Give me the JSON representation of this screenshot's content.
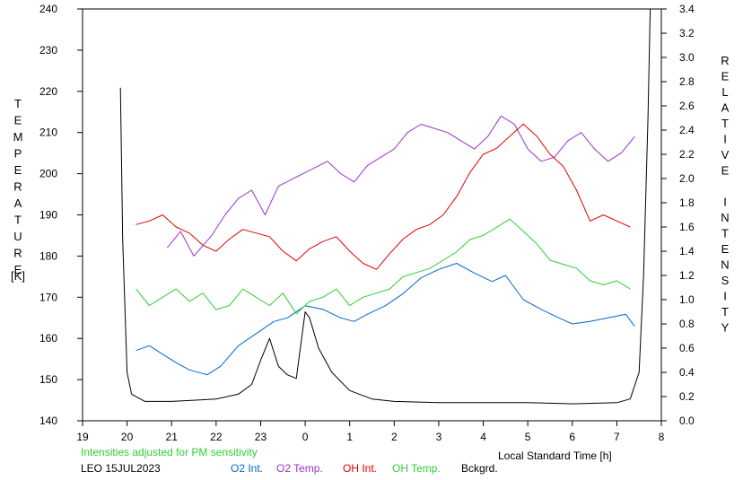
{
  "chart_data": {
    "type": "line",
    "x_label": "Local Standard Time [h]",
    "x_ticks": [
      19,
      20,
      21,
      22,
      23,
      0,
      1,
      2,
      3,
      4,
      5,
      6,
      7,
      8
    ],
    "x_range": [
      19,
      32
    ],
    "y_left_label": "TEMPERATURE [K]",
    "y_left_range": [
      140,
      240
    ],
    "y_left_ticks": [
      140,
      150,
      160,
      170,
      180,
      190,
      200,
      210,
      220,
      230,
      240
    ],
    "y_right_label": "RELATIVE INTENSITY",
    "y_right_range": [
      0.0,
      3.4
    ],
    "y_right_ticks": [
      "0.0",
      "0.2",
      "0.4",
      "0.6",
      "0.8",
      "1.0",
      "1.2",
      "1.4",
      "1.6",
      "1.8",
      "2.0",
      "2.2",
      "2.4",
      "2.6",
      "2.8",
      "3.0",
      "3.2",
      "3.4"
    ],
    "note": "Intensities adjusted for PM sensitivity",
    "station": "LEO 15JUL2023",
    "series": [
      {
        "name": "O2 Int.",
        "color": "#0066cc",
        "axis": "right",
        "x": [
          20.2,
          20.5,
          20.8,
          21.1,
          21.4,
          21.8,
          22.1,
          22.5,
          22.9,
          23.3,
          23.6,
          24.0,
          24.4,
          24.8,
          25.1,
          25.4,
          25.8,
          26.2,
          26.6,
          27.0,
          27.4,
          27.8,
          28.2,
          28.5,
          28.9,
          29.3,
          29.7,
          30.0,
          30.4,
          30.8,
          31.2,
          31.4
        ],
        "y": [
          0.58,
          0.62,
          0.55,
          0.48,
          0.42,
          0.38,
          0.45,
          0.62,
          0.72,
          0.82,
          0.85,
          0.95,
          0.92,
          0.85,
          0.82,
          0.88,
          0.95,
          1.05,
          1.18,
          1.25,
          1.3,
          1.22,
          1.15,
          1.2,
          1.0,
          0.92,
          0.85,
          0.8,
          0.82,
          0.85,
          0.88,
          0.78
        ]
      },
      {
        "name": "O2 Temp.",
        "color": "#9933cc",
        "axis": "left",
        "x": [
          20.9,
          21.2,
          21.5,
          21.9,
          22.2,
          22.5,
          22.8,
          23.1,
          23.4,
          24.5,
          24.8,
          25.1,
          25.4,
          25.7,
          26.0,
          26.3,
          26.6,
          26.9,
          27.2,
          27.5,
          27.8,
          28.1,
          28.4,
          28.7,
          29.0,
          29.3,
          29.6,
          29.9,
          30.2,
          30.5,
          30.8,
          31.1,
          31.4
        ],
        "y": [
          182,
          186,
          180,
          185,
          190,
          194,
          196,
          190,
          197,
          203,
          200,
          198,
          202,
          204,
          206,
          210,
          212,
          211,
          210,
          208,
          206,
          209,
          214,
          212,
          206,
          203,
          204,
          208,
          210,
          206,
          203,
          205,
          209
        ]
      },
      {
        "name": "OH Int.",
        "color": "#dd0000",
        "axis": "right",
        "x": [
          20.2,
          20.5,
          20.8,
          21.1,
          21.4,
          21.7,
          22.0,
          22.3,
          22.6,
          22.9,
          23.2,
          23.5,
          23.8,
          24.1,
          24.4,
          24.7,
          25.0,
          25.3,
          25.6,
          25.9,
          26.2,
          26.5,
          26.8,
          27.1,
          27.4,
          27.7,
          28.0,
          28.3,
          28.6,
          28.9,
          29.2,
          29.5,
          29.8,
          30.1,
          30.4,
          30.7,
          31.0,
          31.3
        ],
        "y": [
          1.62,
          1.65,
          1.7,
          1.6,
          1.55,
          1.45,
          1.4,
          1.5,
          1.58,
          1.55,
          1.52,
          1.4,
          1.32,
          1.42,
          1.48,
          1.52,
          1.4,
          1.3,
          1.25,
          1.38,
          1.5,
          1.58,
          1.62,
          1.7,
          1.85,
          2.05,
          2.2,
          2.25,
          2.35,
          2.45,
          2.35,
          2.2,
          2.1,
          1.9,
          1.65,
          1.7,
          1.65,
          1.6
        ]
      },
      {
        "name": "OH Temp.",
        "color": "#33cc33",
        "axis": "left",
        "x": [
          20.2,
          20.5,
          20.8,
          21.1,
          21.4,
          21.7,
          22.0,
          22.3,
          22.6,
          22.9,
          23.2,
          23.5,
          23.8,
          24.1,
          24.4,
          24.7,
          25.0,
          25.3,
          25.6,
          25.9,
          26.2,
          26.5,
          26.8,
          27.1,
          27.4,
          27.7,
          28.0,
          28.3,
          28.6,
          28.9,
          29.2,
          29.5,
          29.8,
          30.1,
          30.4,
          30.7,
          31.0,
          31.3
        ],
        "y": [
          172,
          168,
          170,
          172,
          169,
          171,
          167,
          168,
          172,
          170,
          168,
          171,
          166,
          169,
          170,
          172,
          168,
          170,
          171,
          172,
          175,
          176,
          177,
          179,
          181,
          184,
          185,
          187,
          189,
          186,
          183,
          179,
          178,
          177,
          174,
          173,
          174,
          172
        ]
      },
      {
        "name": "Bckgrd.",
        "color": "#000000",
        "axis": "right",
        "x": [
          19.85,
          19.9,
          20.0,
          20.1,
          20.4,
          21.0,
          21.5,
          22.0,
          22.5,
          22.8,
          23.0,
          23.2,
          23.4,
          23.6,
          23.8,
          24.0,
          24.1,
          24.3,
          24.6,
          25.0,
          25.5,
          26.0,
          27.0,
          28.0,
          29.0,
          30.0,
          31.0,
          31.3,
          31.5,
          31.6,
          31.7,
          31.75
        ],
        "y": [
          2.75,
          1.5,
          0.4,
          0.22,
          0.16,
          0.16,
          0.17,
          0.18,
          0.22,
          0.3,
          0.5,
          0.68,
          0.45,
          0.38,
          0.35,
          0.9,
          0.85,
          0.6,
          0.4,
          0.25,
          0.18,
          0.16,
          0.15,
          0.15,
          0.15,
          0.14,
          0.15,
          0.18,
          0.4,
          1.2,
          2.5,
          3.4
        ]
      }
    ]
  },
  "legend": {
    "note_color": "#33cc33",
    "o2_int_label": "O2 Int.",
    "o2_temp_label": "O2 Temp.",
    "oh_int_label": "OH Int.",
    "oh_temp_label": "OH Temp.",
    "bckgrd_label": "Bckgrd."
  }
}
